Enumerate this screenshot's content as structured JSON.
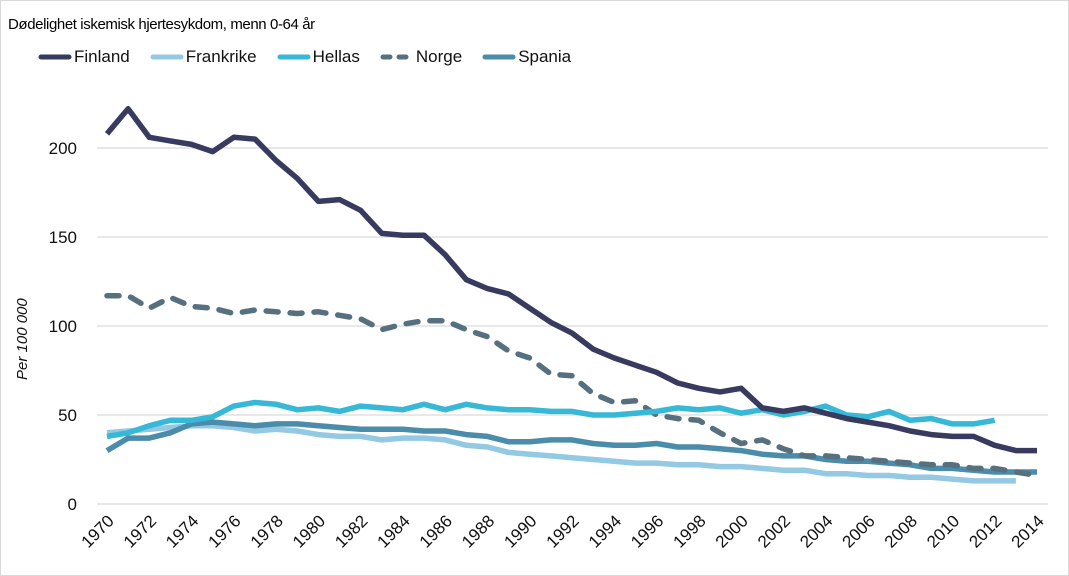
{
  "chart_data": {
    "type": "line",
    "title": "Dødelighet iskemisk hjertesykdom, menn 0-64 år",
    "xlabel": "",
    "ylabel": "Per 100 000",
    "ylim": [
      0,
      220
    ],
    "yticks": [
      0,
      50,
      100,
      150,
      200
    ],
    "xlim": [
      1970,
      2014
    ],
    "xticks": [
      1970,
      1972,
      1974,
      1976,
      1978,
      1980,
      1982,
      1984,
      1986,
      1988,
      1990,
      1992,
      1994,
      1996,
      1998,
      2000,
      2002,
      2004,
      2006,
      2008,
      2010,
      2012,
      2014
    ],
    "grid": true,
    "legend": "top",
    "x": [
      1970,
      1971,
      1972,
      1973,
      1974,
      1975,
      1976,
      1977,
      1978,
      1979,
      1980,
      1981,
      1982,
      1983,
      1984,
      1985,
      1986,
      1987,
      1988,
      1989,
      1990,
      1991,
      1992,
      1993,
      1994,
      1995,
      1996,
      1997,
      1998,
      1999,
      2000,
      2001,
      2002,
      2003,
      2004,
      2005,
      2006,
      2007,
      2008,
      2009,
      2010,
      2011,
      2012,
      2013,
      2014
    ],
    "series": [
      {
        "name": "Finland",
        "color": "#383a5f",
        "dashed": false,
        "values": [
          208,
          222,
          206,
          204,
          202,
          198,
          206,
          205,
          193,
          183,
          170,
          171,
          165,
          152,
          151,
          151,
          140,
          126,
          121,
          118,
          110,
          102,
          96,
          87,
          82,
          78,
          74,
          68,
          65,
          63,
          65,
          54,
          52,
          54,
          51,
          48,
          46,
          44,
          41,
          39,
          38,
          38,
          33,
          30,
          30
        ]
      },
      {
        "name": "Frankrike",
        "color": "#93c9e2",
        "dashed": false,
        "values": [
          40,
          41,
          42,
          43,
          44,
          44,
          43,
          41,
          42,
          41,
          39,
          38,
          38,
          36,
          37,
          37,
          36,
          33,
          32,
          29,
          28,
          27,
          26,
          25,
          24,
          23,
          23,
          22,
          22,
          21,
          21,
          20,
          19,
          19,
          17,
          17,
          16,
          16,
          15,
          15,
          14,
          13,
          13,
          13,
          null
        ]
      },
      {
        "name": "Hellas",
        "color": "#37b8d6",
        "dashed": false,
        "values": [
          38,
          40,
          44,
          47,
          47,
          49,
          55,
          57,
          56,
          53,
          54,
          52,
          55,
          54,
          53,
          56,
          53,
          56,
          54,
          53,
          53,
          52,
          52,
          50,
          50,
          51,
          52,
          54,
          53,
          54,
          51,
          53,
          50,
          52,
          55,
          50,
          49,
          52,
          47,
          48,
          45,
          45,
          47,
          null,
          null
        ]
      },
      {
        "name": "Norge",
        "color": "#56707f",
        "dashed": true,
        "values": [
          117,
          117,
          110,
          116,
          111,
          110,
          107,
          109,
          108,
          107,
          108,
          106,
          104,
          98,
          101,
          103,
          103,
          98,
          94,
          86,
          82,
          73,
          72,
          62,
          57,
          58,
          50,
          48,
          47,
          40,
          34,
          36,
          31,
          27,
          27,
          26,
          25,
          24,
          23,
          22,
          22,
          20,
          20,
          18,
          16
        ]
      },
      {
        "name": "Spania",
        "color": "#4a8ca9",
        "dashed": false,
        "values": [
          30,
          37,
          37,
          40,
          45,
          46,
          45,
          44,
          45,
          45,
          44,
          43,
          42,
          42,
          42,
          41,
          41,
          39,
          38,
          35,
          35,
          36,
          36,
          34,
          33,
          33,
          34,
          32,
          32,
          31,
          30,
          28,
          27,
          27,
          25,
          24,
          24,
          23,
          22,
          20,
          20,
          19,
          18,
          18,
          18
        ]
      }
    ]
  }
}
